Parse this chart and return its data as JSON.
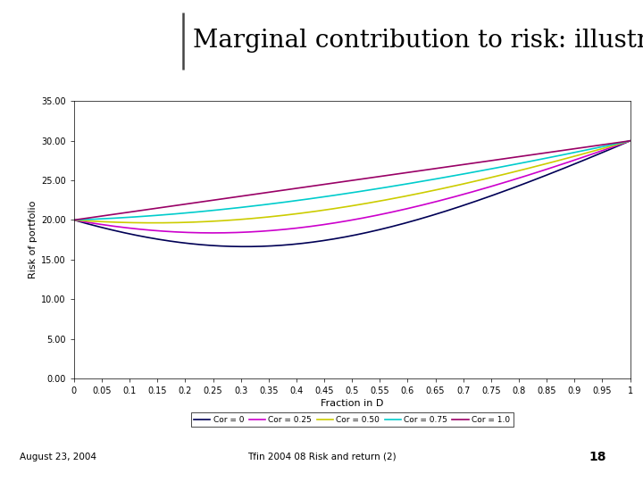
{
  "title": "Marginal contribution to risk: illustration",
  "xlabel": "Fraction in D",
  "ylabel": "Risk of portfolio",
  "sigma_A": 20.0,
  "sigma_B": 30.0,
  "correlations": [
    0.0,
    0.25,
    0.5,
    0.75,
    1.0
  ],
  "line_colors": [
    "#000055",
    "#cc00cc",
    "#cccc00",
    "#00cccc",
    "#990066"
  ],
  "line_labels": [
    "Cor = 0",
    "Cor = 0.25",
    "Cor = 0.50",
    "Cor = 0.75",
    "Cor = 1.0"
  ],
  "ylim": [
    0,
    35
  ],
  "yticks": [
    0.0,
    5.0,
    10.0,
    15.0,
    20.0,
    25.0,
    30.0,
    35.0
  ],
  "xticks": [
    0,
    0.05,
    0.1,
    0.15,
    0.2,
    0.25,
    0.3,
    0.35,
    0.4,
    0.45,
    0.5,
    0.55,
    0.6,
    0.65,
    0.7,
    0.75,
    0.8,
    0.85,
    0.9,
    0.95,
    1.0
  ],
  "background_color": "#ffffff",
  "plot_background": "#ffffff",
  "title_fontsize": 20,
  "axis_fontsize": 7,
  "legend_fontsize": 6.5,
  "subtitle_date": "August 23, 2004",
  "subtitle_course": "Tfin 2004 08 Risk and return (2)",
  "slide_number": "18",
  "footer_bg": "#f0a500"
}
